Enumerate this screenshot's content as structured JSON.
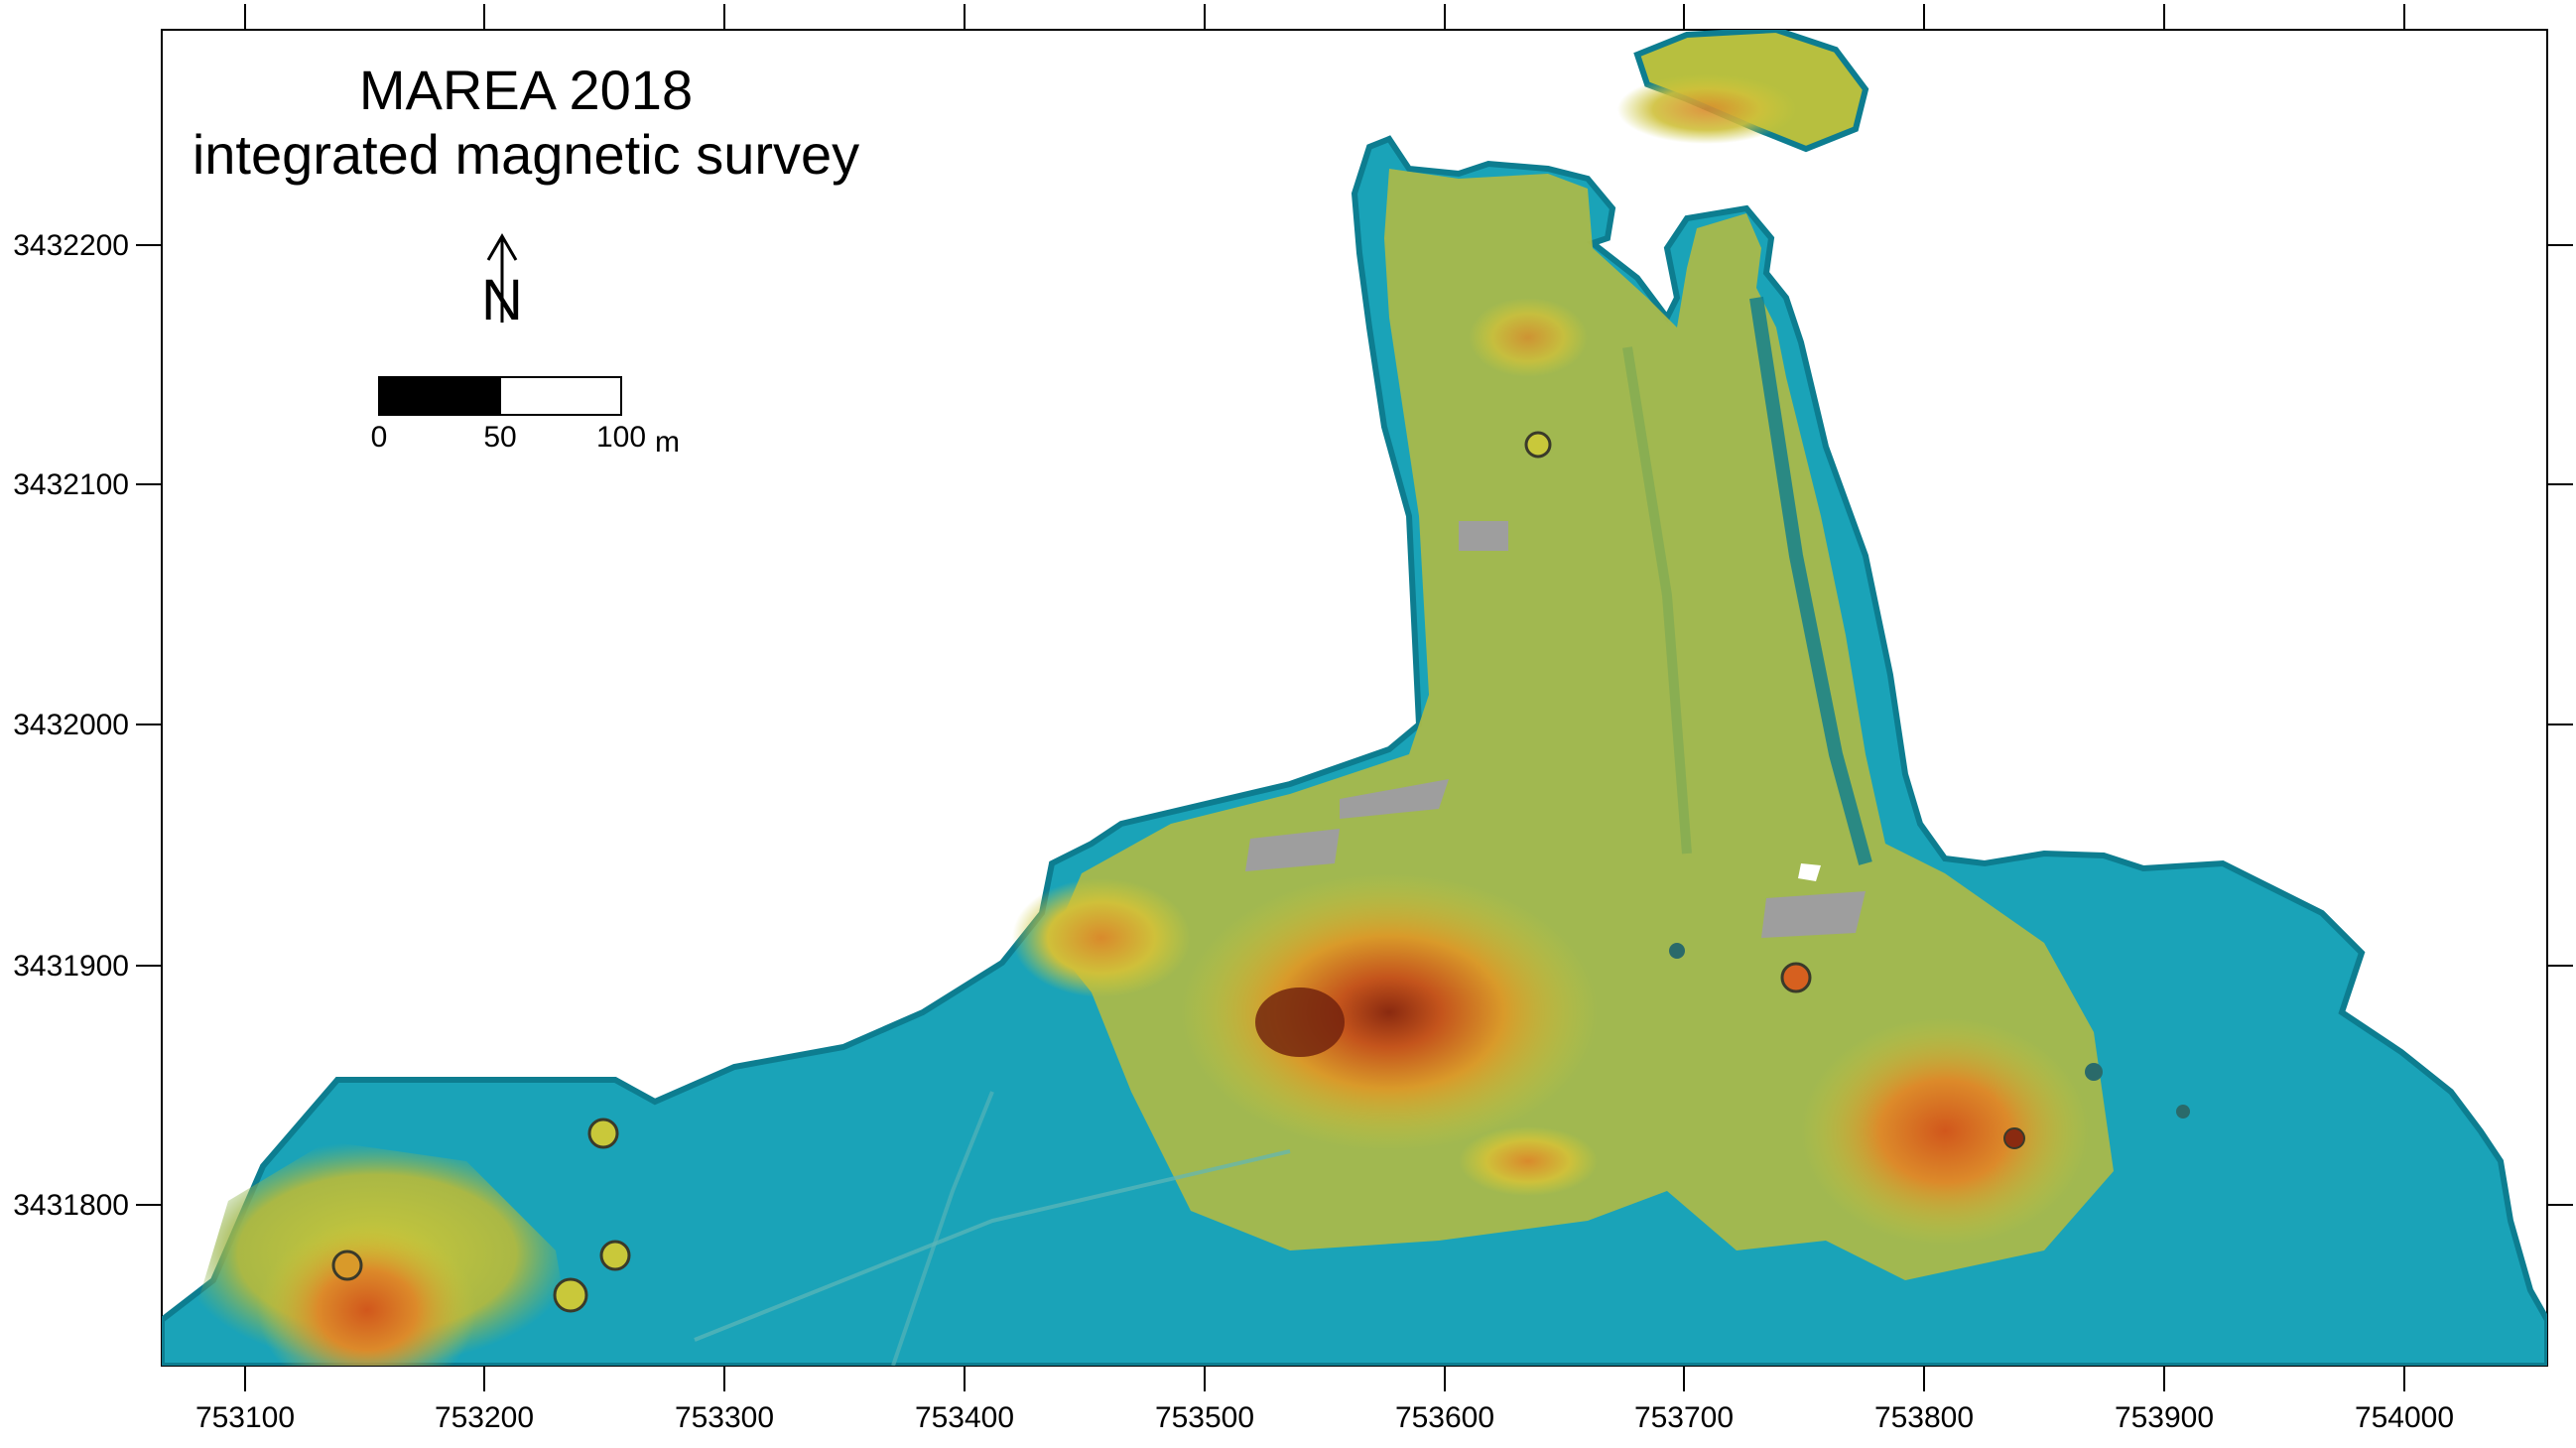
{
  "map": {
    "title_line1": "MAREA 2018",
    "title_line2": "integrated magnetic survey",
    "north_label": "N",
    "scale_bar": {
      "labels": [
        "0",
        "50",
        "100"
      ],
      "unit": "m",
      "length_m": 100
    },
    "x_axis": {
      "ticks": [
        "753100",
        "753200",
        "753300",
        "753400",
        "753500",
        "753600",
        "753700",
        "753800",
        "753900",
        "754000"
      ]
    },
    "y_axis": {
      "ticks": [
        "3432200",
        "3432100",
        "3432000",
        "3431900",
        "3431800"
      ]
    },
    "colors": {
      "low": "#1aa3b8",
      "mid": "#c9c83a",
      "high": "#d65a1c",
      "peak": "#8a2a10",
      "masked": "#9e9e9e"
    }
  }
}
